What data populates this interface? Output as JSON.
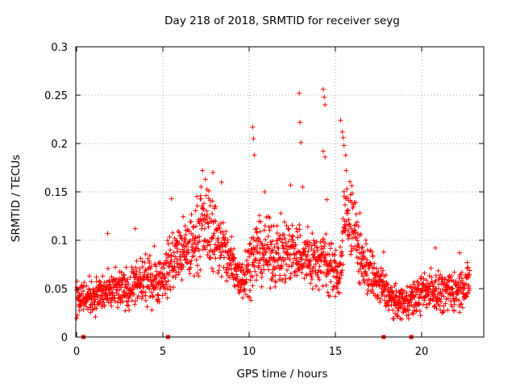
{
  "chart_data": {
    "type": "scatter",
    "title": "Day 218 of 2018, SRMTID for receiver seyg",
    "xlabel": "GPS time / hours",
    "ylabel": "SRMTID / TECUs",
    "xlim": [
      0,
      24
    ],
    "ylim": [
      0,
      0.3
    ],
    "xticks": [
      0,
      5,
      10,
      15,
      20
    ],
    "xtick_labels": [
      "0",
      "5",
      "10",
      "15",
      "20"
    ],
    "yticks": [
      0,
      0.05,
      0.1,
      0.15,
      0.2,
      0.25,
      0.3
    ],
    "ytick_labels": [
      "0",
      "0.05",
      "0.1",
      "0.15",
      "0.2",
      "0.25",
      "0.3"
    ],
    "grid": true,
    "marker": "+",
    "color": "#ff0000",
    "data_gap_markers_x": [
      0.4,
      5.3,
      17.8,
      19.4
    ],
    "trend": [
      {
        "x": 0.0,
        "y": 0.04
      },
      {
        "x": 1.0,
        "y": 0.043
      },
      {
        "x": 2.0,
        "y": 0.046
      },
      {
        "x": 3.0,
        "y": 0.05
      },
      {
        "x": 4.0,
        "y": 0.058
      },
      {
        "x": 5.0,
        "y": 0.06
      },
      {
        "x": 5.5,
        "y": 0.08
      },
      {
        "x": 6.5,
        "y": 0.09
      },
      {
        "x": 7.5,
        "y": 0.12
      },
      {
        "x": 8.5,
        "y": 0.09
      },
      {
        "x": 9.5,
        "y": 0.06
      },
      {
        "x": 10.5,
        "y": 0.09
      },
      {
        "x": 11.5,
        "y": 0.085
      },
      {
        "x": 12.5,
        "y": 0.09
      },
      {
        "x": 13.5,
        "y": 0.08
      },
      {
        "x": 14.5,
        "y": 0.08
      },
      {
        "x": 15.2,
        "y": 0.06
      },
      {
        "x": 15.7,
        "y": 0.14
      },
      {
        "x": 16.5,
        "y": 0.08
      },
      {
        "x": 17.5,
        "y": 0.055
      },
      {
        "x": 18.5,
        "y": 0.035
      },
      {
        "x": 19.5,
        "y": 0.04
      },
      {
        "x": 20.5,
        "y": 0.05
      },
      {
        "x": 21.5,
        "y": 0.045
      },
      {
        "x": 22.8,
        "y": 0.055
      }
    ],
    "peaks": [
      {
        "x": 10.2,
        "y": 0.217
      },
      {
        "x": 10.25,
        "y": 0.205
      },
      {
        "x": 10.3,
        "y": 0.188
      },
      {
        "x": 12.9,
        "y": 0.252
      },
      {
        "x": 12.95,
        "y": 0.222
      },
      {
        "x": 13.0,
        "y": 0.201
      },
      {
        "x": 14.3,
        "y": 0.256
      },
      {
        "x": 14.35,
        "y": 0.248
      },
      {
        "x": 14.4,
        "y": 0.24
      },
      {
        "x": 14.3,
        "y": 0.192
      },
      {
        "x": 14.4,
        "y": 0.186
      },
      {
        "x": 15.3,
        "y": 0.224
      },
      {
        "x": 15.4,
        "y": 0.212
      },
      {
        "x": 15.45,
        "y": 0.206
      },
      {
        "x": 15.5,
        "y": 0.198
      },
      {
        "x": 15.6,
        "y": 0.188
      },
      {
        "x": 7.3,
        "y": 0.172
      },
      {
        "x": 7.9,
        "y": 0.17
      },
      {
        "x": 8.4,
        "y": 0.16
      },
      {
        "x": 10.9,
        "y": 0.15
      },
      {
        "x": 12.4,
        "y": 0.157
      },
      {
        "x": 13.1,
        "y": 0.155
      },
      {
        "x": 14.5,
        "y": 0.142
      },
      {
        "x": 5.5,
        "y": 0.143
      },
      {
        "x": 1.8,
        "y": 0.107
      },
      {
        "x": 3.4,
        "y": 0.112
      },
      {
        "x": 20.8,
        "y": 0.092
      },
      {
        "x": 22.2,
        "y": 0.087
      },
      {
        "x": 17.8,
        "y": 0.088
      },
      {
        "x": 4.5,
        "y": 0.094
      }
    ]
  }
}
